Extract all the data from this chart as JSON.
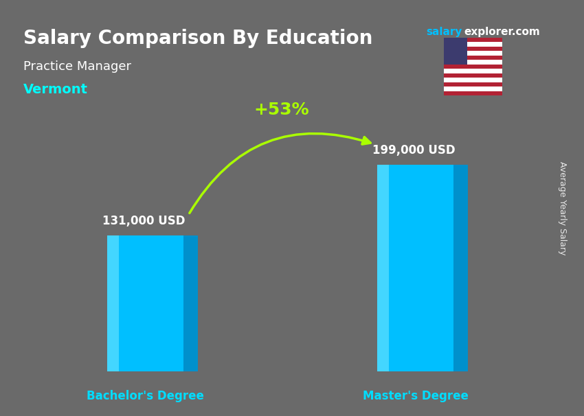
{
  "title": "Salary Comparison By Education",
  "subtitle_job": "Practice Manager",
  "subtitle_location": "Vermont",
  "salary_label": "salary",
  "site_name": "salary",
  "site_ext": "explorer.com",
  "ylabel": "Average Yearly Salary",
  "categories": [
    "Bachelor's Degree",
    "Master's Degree"
  ],
  "values": [
    131000,
    199000
  ],
  "value_labels": [
    "131,000 USD",
    "199,000 USD"
  ],
  "pct_change": "+53%",
  "bar_color_main": "#00BFFF",
  "bar_color_light": "#87EEFF",
  "bar_color_dark": "#0090CC",
  "bar_color_top": "#55DDFF",
  "pct_color": "#AAFF00",
  "arrow_color": "#AAFF00",
  "title_color": "#FFFFFF",
  "subtitle_job_color": "#FFFFFF",
  "subtitle_loc_color": "#00FFFF",
  "xlabel_color": "#00DDFF",
  "value_label_color": "#FFFFFF",
  "site_color1": "#00BFFF",
  "site_color2": "#FFFFFF",
  "background_color": "#555555",
  "bar_width": 0.35,
  "ylim": [
    0,
    260000
  ],
  "figsize": [
    8.5,
    6.06
  ],
  "dpi": 100
}
